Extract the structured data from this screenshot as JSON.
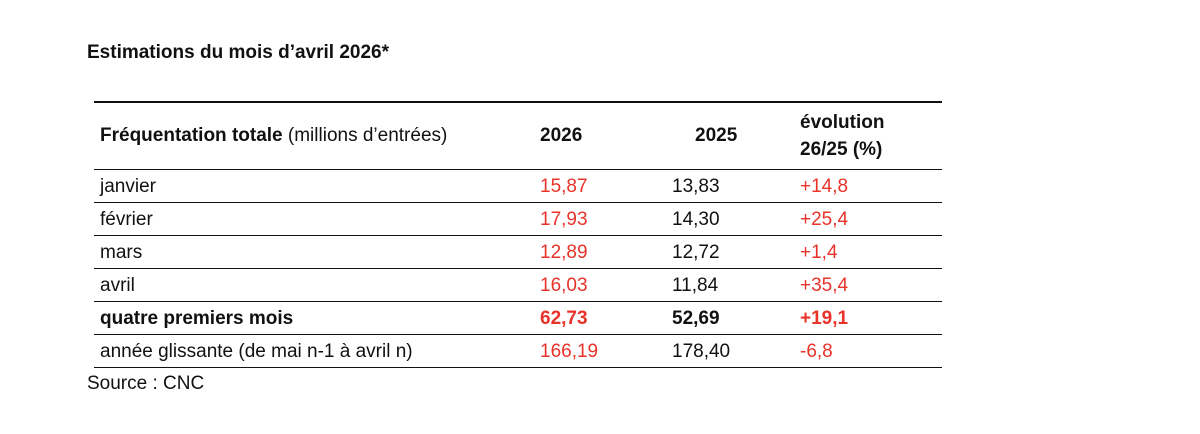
{
  "title": "Estimations du mois d’avril 2026*",
  "header": {
    "label_bold": "Fréquentation totale",
    "label_rest": " (millions d’entrées)",
    "col_2026": "2026",
    "col_2025": "2025",
    "col_evo_line1": "évolution",
    "col_evo_line2": "26/25 (%)"
  },
  "rows": [
    {
      "label": "janvier",
      "v2026": "15,87",
      "v2025": "13,83",
      "evo": "+14,8"
    },
    {
      "label": "février",
      "v2026": "17,93",
      "v2025": "14,30",
      "evo": "+25,4"
    },
    {
      "label": "mars",
      "v2026": "12,89",
      "v2025": "12,72",
      "evo": "+1,4"
    },
    {
      "label": "avril",
      "v2026": "16,03",
      "v2025": "11,84",
      "evo": "+35,4"
    },
    {
      "label": "quatre premiers mois",
      "v2026": "62,73",
      "v2025": "52,69",
      "evo": "+19,1"
    },
    {
      "label": "année glissante (de mai n-1 à avril n)",
      "v2026": "166,19",
      "v2025": "178,40",
      "evo": "-6,8"
    }
  ],
  "source": "Source : CNC",
  "colors": {
    "highlight": "#e8332a",
    "text": "#111111"
  }
}
